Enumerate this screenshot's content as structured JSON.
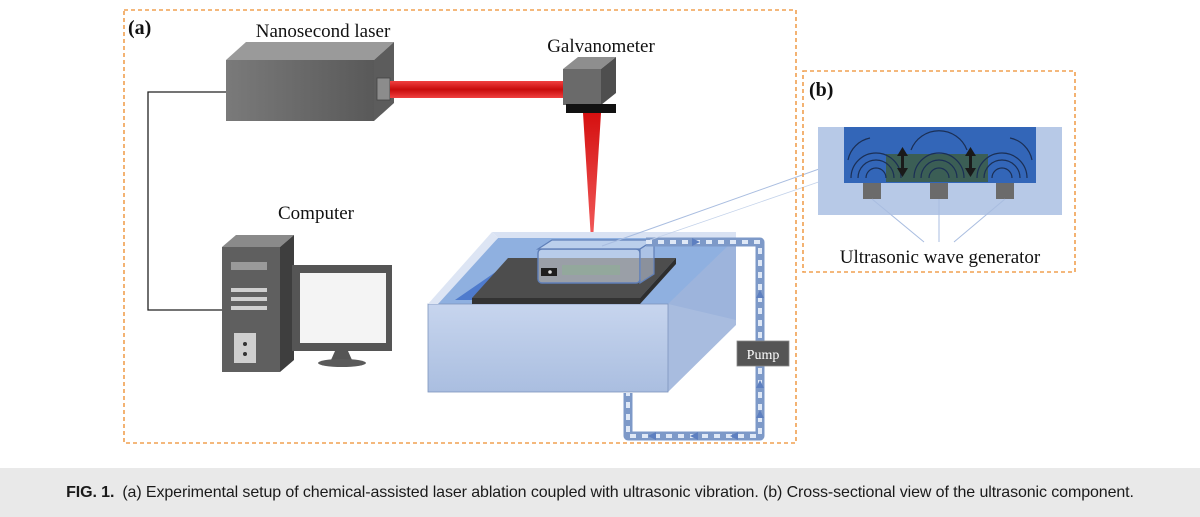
{
  "panel_a": {
    "label": "(a)",
    "laser_label": "Nanosecond laser",
    "galvo_label": "Galvanometer",
    "computer_label": "Computer",
    "pump_label": "Pump"
  },
  "panel_b": {
    "label": "(b)",
    "generator_label": "Ultrasonic wave generator"
  },
  "caption": {
    "fig_label": "FIG. 1.",
    "text": "(a) Experimental setup of chemical-assisted laser ablation coupled with ultrasonic vibration. (b) Cross-sectional view of the ultrasonic component."
  },
  "colors": {
    "frame_border": "#f0a050",
    "laser_beam": "#e01818",
    "water": "#b9c9e6",
    "transducer_body": "#3366b8",
    "workpiece": "#3b5e55"
  },
  "icons": [
    "laser-device-icon",
    "galvanometer-icon",
    "computer-tower-icon",
    "monitor-icon",
    "pump-icon",
    "flow-arrow-icon",
    "vibration-arrow-icon"
  ]
}
